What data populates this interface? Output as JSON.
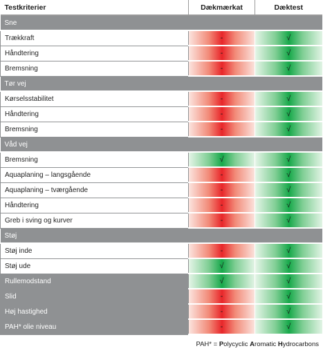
{
  "header": {
    "col1": "Testkriterier",
    "col2": "Dækmærkat",
    "col3": "Dæktest"
  },
  "sections": [
    {
      "title": "Sne",
      "rows": [
        {
          "label": "Trækkraft",
          "grey": false,
          "marker": {
            "value": "-",
            "color": "red"
          },
          "test": {
            "value": "√",
            "color": "green"
          }
        },
        {
          "label": "Håndtering",
          "grey": false,
          "marker": {
            "value": "-",
            "color": "red"
          },
          "test": {
            "value": "√",
            "color": "green"
          }
        },
        {
          "label": "Bremsning",
          "grey": false,
          "marker": {
            "value": "-",
            "color": "red"
          },
          "test": {
            "value": "√",
            "color": "green"
          }
        }
      ]
    },
    {
      "title": "Tør vej",
      "rows": [
        {
          "label": "Kørselsstabilitet",
          "grey": false,
          "marker": {
            "value": "-",
            "color": "red"
          },
          "test": {
            "value": "√",
            "color": "green"
          }
        },
        {
          "label": "Håndtering",
          "grey": false,
          "marker": {
            "value": "-",
            "color": "red"
          },
          "test": {
            "value": "√",
            "color": "green"
          }
        },
        {
          "label": "Bremsning",
          "grey": false,
          "marker": {
            "value": "-",
            "color": "red"
          },
          "test": {
            "value": "√",
            "color": "green"
          }
        }
      ]
    },
    {
      "title": "Våd vej",
      "rows": [
        {
          "label": "Bremsning",
          "grey": false,
          "marker": {
            "value": "√",
            "color": "green"
          },
          "test": {
            "value": "√",
            "color": "green"
          }
        },
        {
          "label": "Aquaplaning – langsgående",
          "grey": false,
          "marker": {
            "value": "-",
            "color": "red"
          },
          "test": {
            "value": "√",
            "color": "green"
          }
        },
        {
          "label": "Aquaplaning – tværgående",
          "grey": false,
          "marker": {
            "value": "-",
            "color": "red"
          },
          "test": {
            "value": "√",
            "color": "green"
          }
        },
        {
          "label": "Håndtering",
          "grey": false,
          "marker": {
            "value": "-",
            "color": "red"
          },
          "test": {
            "value": "√",
            "color": "green"
          }
        },
        {
          "label": "Greb i sving og kurver",
          "grey": false,
          "marker": {
            "value": "-",
            "color": "red"
          },
          "test": {
            "value": "√",
            "color": "green"
          }
        }
      ]
    },
    {
      "title": "Støj",
      "rows": [
        {
          "label": "Støj inde",
          "grey": false,
          "marker": {
            "value": "-",
            "color": "red"
          },
          "test": {
            "value": "√",
            "color": "green"
          }
        },
        {
          "label": "Støj ude",
          "grey": false,
          "marker": {
            "value": "√",
            "color": "green"
          },
          "test": {
            "value": "√",
            "color": "green"
          }
        },
        {
          "label": "Rullemodstand",
          "grey": true,
          "marker": {
            "value": "√",
            "color": "green"
          },
          "test": {
            "value": "√",
            "color": "green"
          }
        },
        {
          "label": "Slid",
          "grey": true,
          "marker": {
            "value": "-",
            "color": "red"
          },
          "test": {
            "value": "√",
            "color": "green"
          }
        },
        {
          "label": "Høj hastighed",
          "grey": true,
          "marker": {
            "value": "-",
            "color": "red"
          },
          "test": {
            "value": "√",
            "color": "green"
          }
        },
        {
          "label": "PAH* olie niveau",
          "grey": true,
          "marker": {
            "value": "-",
            "color": "red"
          },
          "test": {
            "value": "√",
            "color": "green"
          }
        }
      ]
    }
  ],
  "footnote": {
    "prefix": "PAH* = ",
    "parts": [
      {
        "bold": "P",
        "rest": "olycyclic "
      },
      {
        "bold": "A",
        "rest": "romatic "
      },
      {
        "bold": "H",
        "rest": "ydrocarbons"
      }
    ]
  },
  "colors": {
    "negative": "#e8262a",
    "positive": "#17a84a",
    "section_bg": "#8f9193"
  }
}
